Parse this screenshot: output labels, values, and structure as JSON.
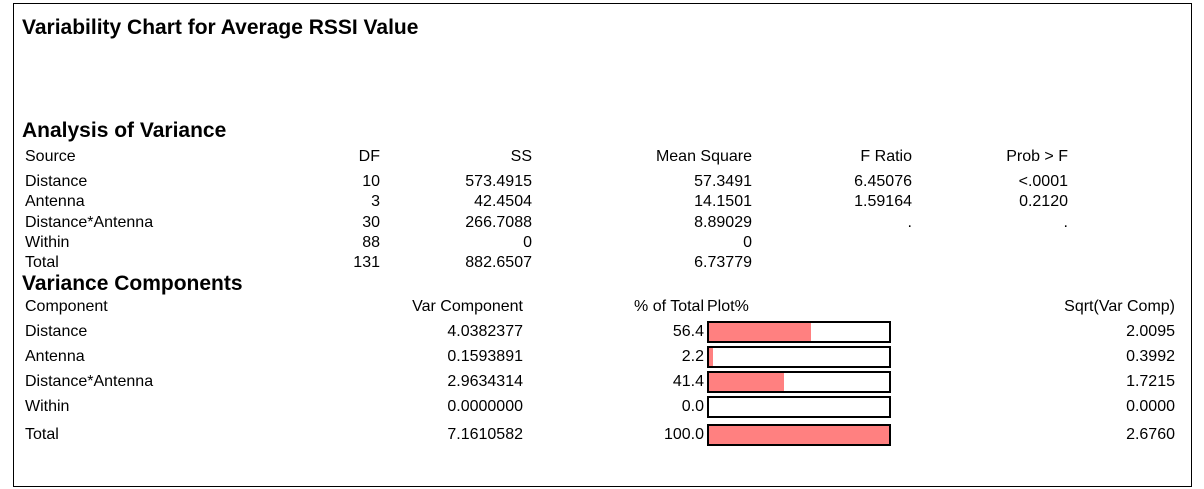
{
  "title": "Variability Chart for Average RSSI Value",
  "anova": {
    "heading": "Analysis of Variance",
    "columns": [
      "Source",
      "DF",
      "SS",
      "Mean Square",
      "F Ratio",
      "Prob > F"
    ],
    "rows": [
      [
        "Distance",
        "10",
        "573.4915",
        "57.3491",
        "6.45076",
        "<.0001"
      ],
      [
        "Antenna",
        "3",
        "42.4504",
        "14.1501",
        "1.59164",
        "0.2120"
      ],
      [
        "Distance*Antenna",
        "30",
        "266.7088",
        "8.89029",
        ".",
        "."
      ],
      [
        "Within",
        "88",
        "0",
        "0"
      ],
      [
        "Total",
        "131",
        "882.6507",
        "6.73779"
      ]
    ]
  },
  "variance_components": {
    "heading": "Variance Components",
    "columns": [
      "Component",
      "Var Component",
      "% of Total",
      "Plot%",
      "Sqrt(Var Comp)"
    ],
    "rows": [
      [
        "Distance",
        "4.0382377",
        "56.4",
        "2.0095"
      ],
      [
        "Antenna",
        "0.1593891",
        "2.2",
        "0.3992"
      ],
      [
        "Distance*Antenna",
        "2.9634314",
        "41.4",
        "1.7215"
      ],
      [
        "Within",
        "0.0000000",
        "0.0",
        "0.0000"
      ],
      [
        "Total",
        "7.1610582",
        "100.0",
        "2.6760"
      ]
    ]
  }
}
